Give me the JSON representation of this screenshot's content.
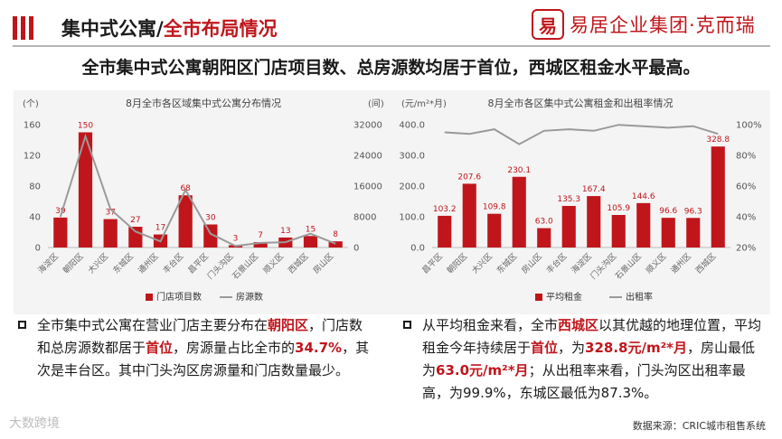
{
  "header": {
    "title_part1": "集中式公寓/",
    "title_part2": "全市布局情况"
  },
  "logo": {
    "mark": "易",
    "text": "易居企业集团·克而瑞"
  },
  "headline": "全市集中式公寓朝阳区门店项目数、总房源数均居于首位，西城区租金水平最高。",
  "chart_data": [
    {
      "type": "bar+line",
      "title": "8月全市各区域集中式公寓分布情况",
      "y_left_unit": "(个)",
      "y_right_unit": "(间)",
      "y_left_ticks": [
        "0",
        "40",
        "80",
        "120",
        "160"
      ],
      "y_right_ticks": [
        "0",
        "8000",
        "16000",
        "24000",
        "32000"
      ],
      "ylim_left": [
        0,
        160
      ],
      "ylim_right": [
        0,
        32000
      ],
      "categories": [
        "海淀区",
        "朝阳区",
        "大兴区",
        "东城区",
        "通州区",
        "丰台区",
        "昌平区",
        "门头沟区",
        "石景山区",
        "顺义区",
        "西城区",
        "房山区"
      ],
      "bar_series": {
        "name": "门店项目数",
        "color": "#c0161b",
        "values": [
          39,
          150,
          37,
          27,
          17,
          68,
          30,
          3,
          7,
          13,
          15,
          8
        ]
      },
      "line_series": {
        "name": "房源数",
        "color": "#9a9a9a",
        "values": [
          8000,
          29000,
          10000,
          4200,
          1600,
          15000,
          3600,
          400,
          1200,
          1400,
          3600,
          1000
        ]
      },
      "grid": false,
      "legend": "bottom"
    },
    {
      "type": "bar+line",
      "title": "8月全市各区集中式公寓租金和出租率情况",
      "y_left_unit": "(元/m²*月)",
      "y_left_ticks": [
        "0.0",
        "100.0",
        "200.0",
        "300.0",
        "400.0"
      ],
      "y_right_ticks": [
        "20%",
        "40%",
        "60%",
        "80%",
        "100%"
      ],
      "ylim_left": [
        0,
        400
      ],
      "ylim_right": [
        20,
        100
      ],
      "categories": [
        "昌平区",
        "朝阳区",
        "大兴区",
        "东城区",
        "房山区",
        "丰台区",
        "海淀区",
        "门头沟区",
        "石景山区",
        "顺义区",
        "通州区",
        "西城区"
      ],
      "bar_series": {
        "name": "平均租金",
        "color": "#c0161b",
        "values": [
          103.2,
          207.6,
          109.8,
          230.1,
          63.0,
          135.3,
          167.4,
          105.9,
          144.6,
          96.6,
          96.3,
          328.8
        ]
      },
      "line_series": {
        "name": "出租率",
        "color": "#9a9a9a",
        "values": [
          95,
          94,
          97,
          87.3,
          96,
          97,
          96,
          99.9,
          99,
          98,
          99,
          94
        ]
      },
      "grid": false,
      "legend": "bottom"
    }
  ],
  "bullets": {
    "left": {
      "t1": "全市集中式公寓在营业门店主要分布在",
      "h1": "朝阳区",
      "t2": "，门店数和总房源数都居于",
      "h2": "首位",
      "t3": "，房源量占比全市的",
      "h3": "34.7%",
      "t4": "，其次是丰台区。其中门头沟区房源量和门店数量最少。"
    },
    "right": {
      "t1": "从平均租金来看，全市",
      "h1": "西城区",
      "t2": "以其优越的地理位置，平均租金今年持续居于",
      "h2": "首位",
      "t3": "，为",
      "h3": "328.8元/m²*月",
      "t4": "，房山最低为",
      "h4": "63.0元/m²*月",
      "t5": "；从出租率来看，门头沟区出租率最高，为99.9%，东城区最低为87.3%。"
    }
  },
  "source": "数据来源：CRIC城市租售系统",
  "watermark": "大数跨境"
}
